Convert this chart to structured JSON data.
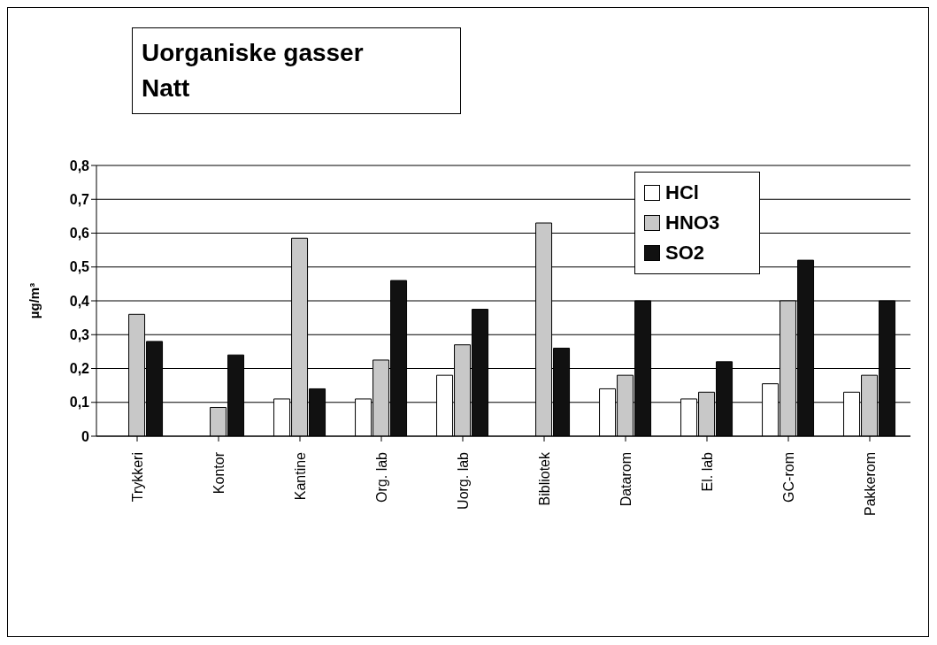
{
  "chart_data": {
    "type": "bar",
    "title": "Uorganiske gasser\nNatt",
    "ylabel": "µg/m³",
    "categories": [
      "Trykkeri",
      "Kontor",
      "Kantine",
      "Org. lab",
      "Uorg. lab",
      "Bibliotek",
      "Datarom",
      "El. lab",
      "GC-rom",
      "Pakkerom"
    ],
    "series": [
      {
        "name": "HCl",
        "color": "#ffffff",
        "values": [
          0,
          0,
          0.11,
          0.11,
          0.18,
          0,
          0.14,
          0.11,
          0.155,
          0.13
        ]
      },
      {
        "name": "HNO3",
        "color": "#c8c8c8",
        "values": [
          0.36,
          0.085,
          0.585,
          0.225,
          0.27,
          0.63,
          0.18,
          0.13,
          0.4,
          0.18
        ]
      },
      {
        "name": "SO2",
        "color": "#111111",
        "values": [
          0.28,
          0.24,
          0.14,
          0.46,
          0.375,
          0.26,
          0.4,
          0.22,
          0.52,
          0.4
        ]
      }
    ],
    "ylim": [
      0,
      0.8
    ],
    "yticks": [
      {
        "value": 0,
        "label": "0"
      },
      {
        "value": 0.1,
        "label": "0,1"
      },
      {
        "value": 0.2,
        "label": "0,2"
      },
      {
        "value": 0.3,
        "label": "0,3"
      },
      {
        "value": 0.4,
        "label": "0,4"
      },
      {
        "value": 0.5,
        "label": "0,5"
      },
      {
        "value": 0.6,
        "label": "0,6"
      },
      {
        "value": 0.7,
        "label": "0,7"
      },
      {
        "value": 0.8,
        "label": "0,8"
      }
    ],
    "grid": "y",
    "legend": "top right"
  }
}
